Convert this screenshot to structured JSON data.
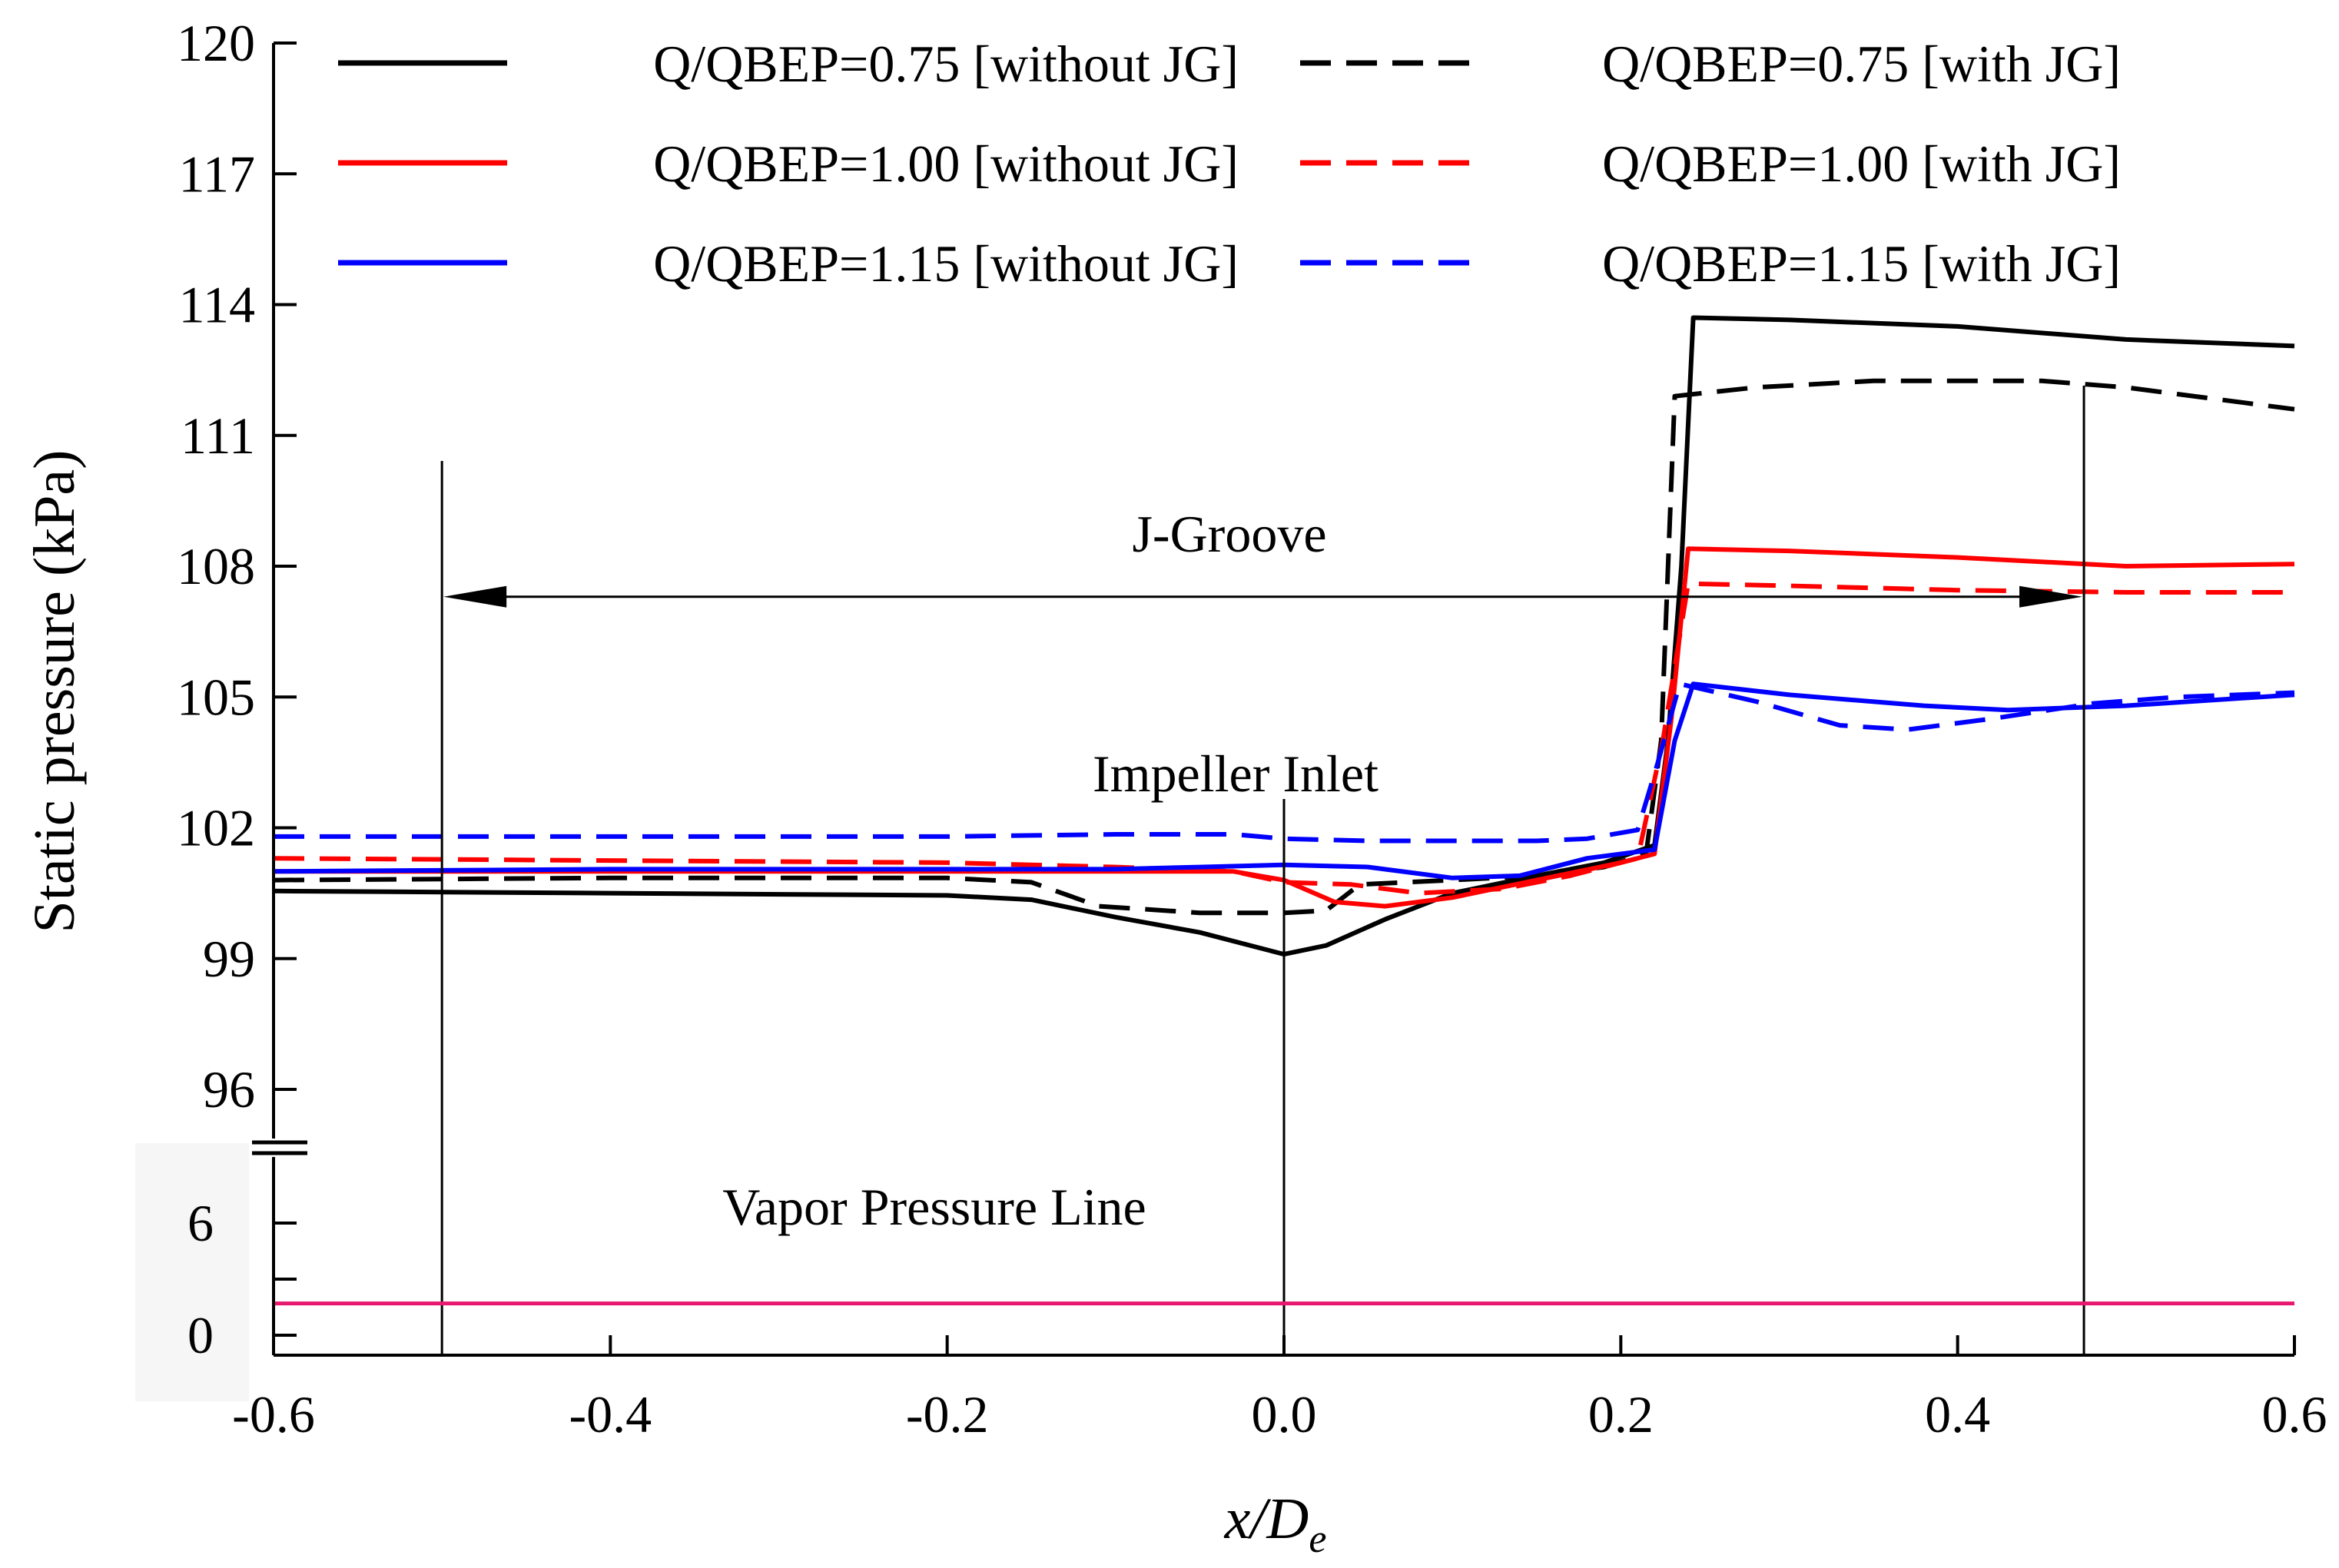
{
  "chart_data": {
    "type": "line",
    "title": "",
    "xlabel": "x/D",
    "xlabel_sub": "e",
    "ylabel": "Static pressure (kPa)",
    "xlim": [
      -0.6,
      0.6
    ],
    "x_ticks": [
      -0.6,
      -0.4,
      -0.2,
      0.0,
      0.2,
      0.4,
      0.6
    ],
    "x_tick_labels": [
      "-0.6",
      "-0.4",
      "-0.2",
      "0.0",
      "0.2",
      "0.4",
      "0.6"
    ],
    "y_break": true,
    "y_upper_ticks": [
      96,
      99,
      102,
      105,
      108,
      111,
      114,
      117,
      120
    ],
    "y_upper_tick_labels": [
      "96",
      "99",
      "102",
      "105",
      "108",
      "111",
      "114",
      "117",
      "120"
    ],
    "y_lower_ticks": [
      0,
      6
    ],
    "y_lower_tick_labels": [
      "0",
      "6"
    ],
    "grid": false,
    "legend_position": "top",
    "series": [
      {
        "name": "Q/QBEP=0.75 [without JG]",
        "color": "#000000",
        "style": "solid",
        "points": [
          [
            -0.6,
            100.55
          ],
          [
            -0.4,
            100.5
          ],
          [
            -0.2,
            100.45
          ],
          [
            -0.15,
            100.35
          ],
          [
            -0.1,
            99.95
          ],
          [
            -0.05,
            99.6
          ],
          [
            0.0,
            99.1
          ],
          [
            0.025,
            99.3
          ],
          [
            0.06,
            99.9
          ],
          [
            0.1,
            100.5
          ],
          [
            0.15,
            100.9
          ],
          [
            0.19,
            101.2
          ],
          [
            0.22,
            101.6
          ],
          [
            0.228,
            104.0
          ],
          [
            0.236,
            108.0
          ],
          [
            0.243,
            113.7
          ],
          [
            0.3,
            113.65
          ],
          [
            0.4,
            113.5
          ],
          [
            0.5,
            113.2
          ],
          [
            0.6,
            113.05
          ]
        ]
      },
      {
        "name": "Q/QBEP=0.75 [with JG]",
        "color": "#000000",
        "style": "dashed",
        "points": [
          [
            -0.6,
            100.8
          ],
          [
            -0.4,
            100.85
          ],
          [
            -0.2,
            100.85
          ],
          [
            -0.15,
            100.75
          ],
          [
            -0.11,
            100.2
          ],
          [
            -0.05,
            100.05
          ],
          [
            0.0,
            100.05
          ],
          [
            0.025,
            100.1
          ],
          [
            0.045,
            100.7
          ],
          [
            0.1,
            100.8
          ],
          [
            0.15,
            100.9
          ],
          [
            0.19,
            101.1
          ],
          [
            0.215,
            101.4
          ],
          [
            0.224,
            104.0
          ],
          [
            0.232,
            111.9
          ],
          [
            0.28,
            112.1
          ],
          [
            0.35,
            112.25
          ],
          [
            0.45,
            112.25
          ],
          [
            0.5,
            112.1
          ],
          [
            0.6,
            111.6
          ]
        ]
      },
      {
        "name": "Q/QBEP=1.00 [without JG]",
        "color": "#ff0000",
        "style": "solid",
        "points": [
          [
            -0.6,
            101.0
          ],
          [
            -0.4,
            101.0
          ],
          [
            -0.2,
            101.0
          ],
          [
            -0.1,
            101.0
          ],
          [
            -0.03,
            101.0
          ],
          [
            0.0,
            100.8
          ],
          [
            0.03,
            100.3
          ],
          [
            0.06,
            100.2
          ],
          [
            0.1,
            100.4
          ],
          [
            0.15,
            100.8
          ],
          [
            0.2,
            101.2
          ],
          [
            0.22,
            101.4
          ],
          [
            0.23,
            104.5
          ],
          [
            0.24,
            108.4
          ],
          [
            0.3,
            108.35
          ],
          [
            0.4,
            108.2
          ],
          [
            0.5,
            108.0
          ],
          [
            0.6,
            108.05
          ]
        ]
      },
      {
        "name": "Q/QBEP=1.00 [with JG]",
        "color": "#ff0000",
        "style": "dashed",
        "points": [
          [
            -0.6,
            101.3
          ],
          [
            -0.4,
            101.25
          ],
          [
            -0.2,
            101.2
          ],
          [
            -0.1,
            101.1
          ],
          [
            -0.03,
            101.0
          ],
          [
            0.0,
            100.75
          ],
          [
            0.04,
            100.7
          ],
          [
            0.08,
            100.5
          ],
          [
            0.13,
            100.6
          ],
          [
            0.17,
            100.9
          ],
          [
            0.21,
            101.3
          ],
          [
            0.225,
            104.0
          ],
          [
            0.24,
            107.6
          ],
          [
            0.3,
            107.55
          ],
          [
            0.4,
            107.45
          ],
          [
            0.5,
            107.4
          ],
          [
            0.6,
            107.4
          ]
        ]
      },
      {
        "name": "Q/QBEP=1.15 [without JG]",
        "color": "#0000ff",
        "style": "solid",
        "points": [
          [
            -0.6,
            101.0
          ],
          [
            -0.4,
            101.05
          ],
          [
            -0.2,
            101.05
          ],
          [
            -0.1,
            101.05
          ],
          [
            -0.05,
            101.1
          ],
          [
            0.0,
            101.15
          ],
          [
            0.05,
            101.1
          ],
          [
            0.1,
            100.85
          ],
          [
            0.14,
            100.9
          ],
          [
            0.18,
            101.3
          ],
          [
            0.22,
            101.5
          ],
          [
            0.232,
            104.0
          ],
          [
            0.243,
            105.3
          ],
          [
            0.3,
            105.05
          ],
          [
            0.38,
            104.8
          ],
          [
            0.43,
            104.7
          ],
          [
            0.5,
            104.8
          ],
          [
            0.6,
            105.05
          ]
        ]
      },
      {
        "name": "Q/QBEP=1.15 [with JG]",
        "color": "#0000ff",
        "style": "dashed",
        "points": [
          [
            -0.6,
            101.8
          ],
          [
            -0.4,
            101.8
          ],
          [
            -0.2,
            101.8
          ],
          [
            -0.1,
            101.85
          ],
          [
            -0.03,
            101.85
          ],
          [
            0.0,
            101.75
          ],
          [
            0.05,
            101.7
          ],
          [
            0.1,
            101.7
          ],
          [
            0.15,
            101.7
          ],
          [
            0.18,
            101.75
          ],
          [
            0.21,
            101.95
          ],
          [
            0.222,
            103.5
          ],
          [
            0.235,
            105.3
          ],
          [
            0.28,
            104.9
          ],
          [
            0.33,
            104.35
          ],
          [
            0.37,
            104.25
          ],
          [
            0.42,
            104.5
          ],
          [
            0.48,
            104.85
          ],
          [
            0.53,
            105.0
          ],
          [
            0.6,
            105.1
          ]
        ]
      }
    ],
    "vapor_pressure_kpa": 1.7,
    "vapor_line_color": "#e6196f",
    "annotations": {
      "jgroove_label": "J-Groove",
      "jgroove_start_x": -0.5,
      "jgroove_end_x": 0.475,
      "jgroove_arrow_y": 107.3,
      "impeller_label": "Impeller Inlet",
      "impeller_x": 0.0,
      "vapor_label": "Vapor Pressure Line"
    }
  }
}
